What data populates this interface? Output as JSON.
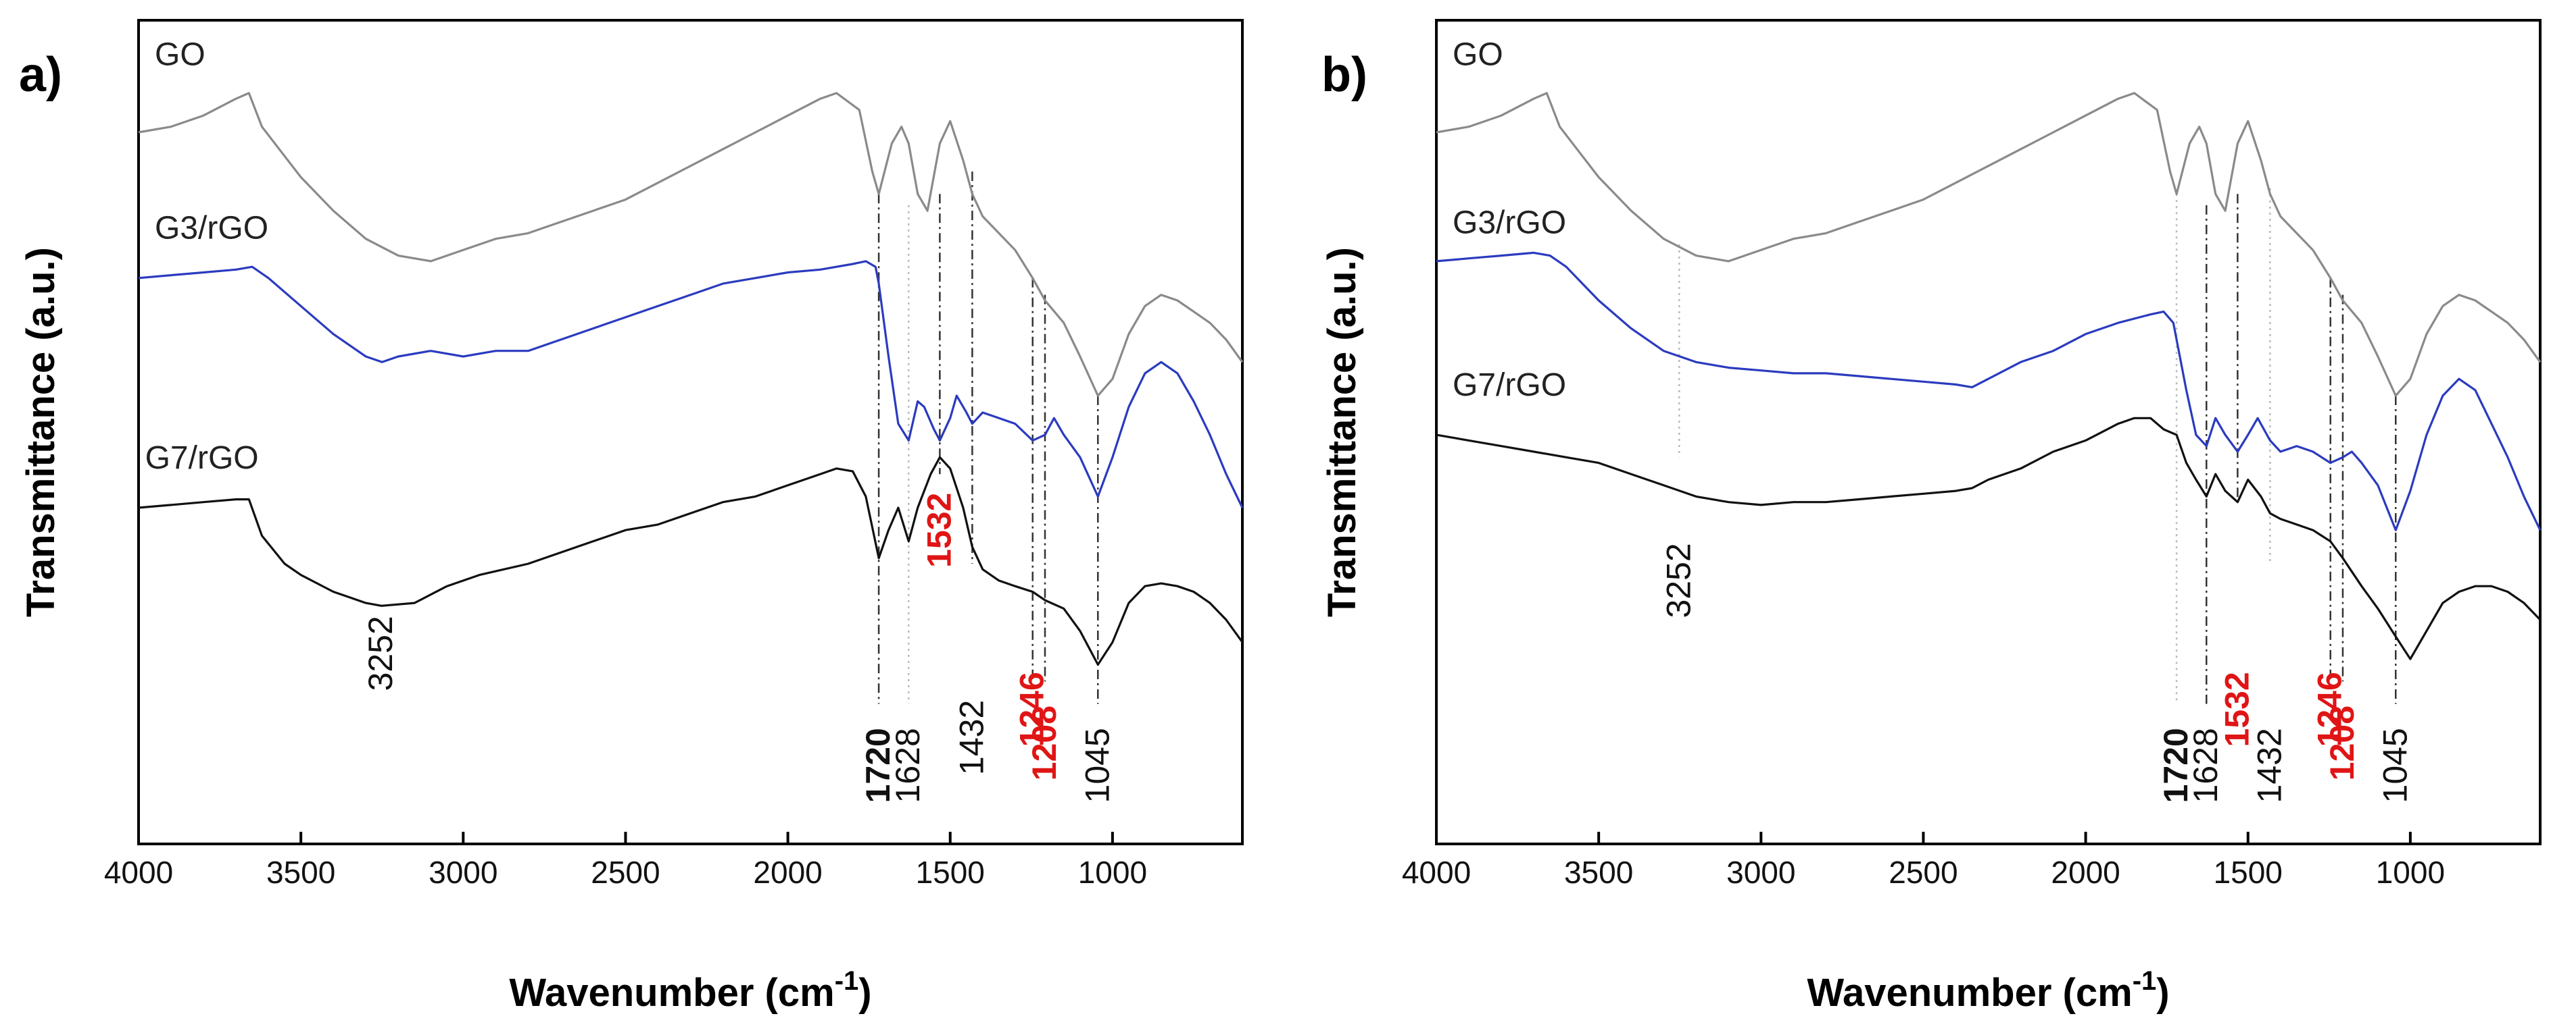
{
  "figure": {
    "ylabel": "Transmittance (a.u.)",
    "xlabel": "Wavenumber (cm",
    "xlabel_superscript": "-1",
    "xlabel_suffix": ")"
  },
  "colors": {
    "GO": "#8a8a8a",
    "G3/rGO": "#2b3bbf",
    "G7/rGO": "#111111",
    "guide": "#333333",
    "guide_light": "#bbbbbb",
    "highlight": "#e01515",
    "normal": "#111111"
  },
  "chart_data": [
    {
      "type": "line",
      "panel_label": "a)",
      "xlabel": "Wavenumber (cm-1)",
      "ylabel": "Transmittance (a.u.)",
      "xlim": [
        4000,
        600
      ],
      "x_ticks": [
        4000,
        3500,
        3000,
        2500,
        2000,
        1500,
        1000
      ],
      "y_ticks_shown": false,
      "series": [
        {
          "name": "GO",
          "x": [
            4000,
            3900,
            3800,
            3700,
            3660,
            3620,
            3500,
            3400,
            3300,
            3200,
            3100,
            3000,
            2900,
            2800,
            2700,
            2600,
            2500,
            2400,
            2300,
            2200,
            2100,
            2000,
            1900,
            1850,
            1780,
            1740,
            1720,
            1680,
            1650,
            1628,
            1600,
            1570,
            1532,
            1500,
            1460,
            1432,
            1400,
            1300,
            1246,
            1208,
            1150,
            1100,
            1045,
            1000,
            950,
            900,
            850,
            800,
            750,
            700,
            650,
            600
          ],
          "values": [
            9.0,
            9.1,
            9.3,
            9.6,
            9.7,
            9.1,
            8.2,
            7.6,
            7.1,
            6.8,
            6.7,
            6.9,
            7.1,
            7.2,
            7.4,
            7.6,
            7.8,
            8.1,
            8.4,
            8.7,
            9.0,
            9.3,
            9.6,
            9.7,
            9.4,
            8.3,
            7.9,
            8.8,
            9.1,
            8.8,
            7.9,
            7.6,
            8.8,
            9.2,
            8.5,
            7.9,
            7.5,
            6.9,
            6.4,
            6.0,
            5.6,
            5.0,
            4.3,
            4.6,
            5.4,
            5.9,
            6.1,
            6.0,
            5.8,
            5.6,
            5.3,
            4.9
          ]
        },
        {
          "name": "G3/rGO",
          "x": [
            4000,
            3900,
            3800,
            3700,
            3650,
            3600,
            3500,
            3400,
            3300,
            3250,
            3200,
            3100,
            3000,
            2900,
            2800,
            2700,
            2600,
            2500,
            2400,
            2300,
            2200,
            2100,
            2000,
            1900,
            1800,
            1760,
            1730,
            1720,
            1690,
            1660,
            1628,
            1600,
            1580,
            1550,
            1532,
            1500,
            1480,
            1450,
            1432,
            1400,
            1350,
            1300,
            1246,
            1208,
            1180,
            1150,
            1100,
            1045,
            1000,
            950,
            900,
            850,
            800,
            750,
            700,
            650,
            600
          ],
          "values": [
            6.4,
            6.45,
            6.5,
            6.55,
            6.6,
            6.4,
            5.9,
            5.4,
            5.0,
            4.9,
            5.0,
            5.1,
            5.0,
            5.1,
            5.1,
            5.3,
            5.5,
            5.7,
            5.9,
            6.1,
            6.3,
            6.4,
            6.5,
            6.55,
            6.65,
            6.7,
            6.6,
            6.3,
            5.0,
            3.8,
            3.5,
            4.2,
            4.1,
            3.7,
            3.5,
            3.9,
            4.3,
            4.0,
            3.8,
            4.0,
            3.9,
            3.8,
            3.5,
            3.6,
            3.9,
            3.6,
            3.2,
            2.5,
            3.2,
            4.1,
            4.7,
            4.9,
            4.7,
            4.2,
            3.6,
            2.9,
            2.3
          ]
        },
        {
          "name": "G7/rGO",
          "x": [
            4000,
            3900,
            3800,
            3700,
            3660,
            3620,
            3550,
            3500,
            3400,
            3300,
            3252,
            3150,
            3050,
            2950,
            2800,
            2700,
            2600,
            2500,
            2400,
            2300,
            2200,
            2100,
            2000,
            1900,
            1850,
            1800,
            1760,
            1720,
            1690,
            1660,
            1628,
            1600,
            1560,
            1532,
            1500,
            1460,
            1432,
            1400,
            1350,
            1300,
            1246,
            1208,
            1150,
            1100,
            1045,
            1000,
            950,
            900,
            850,
            800,
            750,
            700,
            650,
            600
          ],
          "values": [
            2.3,
            2.35,
            2.4,
            2.45,
            2.45,
            1.8,
            1.3,
            1.1,
            0.8,
            0.6,
            0.55,
            0.6,
            0.9,
            1.1,
            1.3,
            1.5,
            1.7,
            1.9,
            2.0,
            2.2,
            2.4,
            2.5,
            2.7,
            2.9,
            3.0,
            2.95,
            2.5,
            1.4,
            1.9,
            2.3,
            1.7,
            2.3,
            2.9,
            3.2,
            3.0,
            2.3,
            1.6,
            1.2,
            1.0,
            0.9,
            0.8,
            0.65,
            0.5,
            0.1,
            -0.5,
            -0.1,
            0.6,
            0.9,
            0.95,
            0.9,
            0.8,
            0.6,
            0.3,
            -0.1
          ]
        }
      ],
      "series_labels": [
        {
          "text": "GO",
          "x": 3950,
          "y": 10.2
        },
        {
          "text": "G3/rGO",
          "x": 3950,
          "y": 7.1
        },
        {
          "text": "G7/rGO",
          "x": 3980,
          "y": 3.0
        }
      ],
      "guides": [
        {
          "x": 1720,
          "y_from": 7.9,
          "y_to": -1.2,
          "style": "dash-dot",
          "color": "guide"
        },
        {
          "x": 1628,
          "y_from": 7.7,
          "y_to": -1.2,
          "style": "dotted",
          "color": "guide_light"
        },
        {
          "x": 1532,
          "y_from": 7.9,
          "y_to": 2.9,
          "style": "dash-dot",
          "color": "guide"
        },
        {
          "x": 1432,
          "y_from": 8.3,
          "y_to": 1.3,
          "style": "dash-dot",
          "color": "guide"
        },
        {
          "x": 1246,
          "y_from": 6.4,
          "y_to": -0.8,
          "style": "dash-dot",
          "color": "guide"
        },
        {
          "x": 1208,
          "y_from": 6.1,
          "y_to": -0.8,
          "style": "dash-dot",
          "color": "guide"
        },
        {
          "x": 1045,
          "y_from": 4.3,
          "y_to": -1.2,
          "style": "dash-dot",
          "color": "guide"
        }
      ],
      "annotations": [
        {
          "text": "3252",
          "x": 3252,
          "y": -0.3,
          "color": "normal",
          "bold": false
        },
        {
          "text": "1720",
          "x": 1720,
          "y": -2.3,
          "color": "normal",
          "bold": true
        },
        {
          "text": "1628",
          "x": 1628,
          "y": -2.3,
          "color": "normal",
          "bold": false
        },
        {
          "text": "1532",
          "x": 1532,
          "y": 1.9,
          "color": "highlight",
          "bold": true
        },
        {
          "text": "1432",
          "x": 1432,
          "y": -1.8,
          "color": "normal",
          "bold": false
        },
        {
          "text": "1246",
          "x": 1246,
          "y": -1.3,
          "color": "highlight",
          "bold": true
        },
        {
          "text": "1208",
          "x": 1208,
          "y": -1.9,
          "color": "highlight",
          "bold": true
        },
        {
          "text": "1045",
          "x": 1045,
          "y": -2.3,
          "color": "normal",
          "bold": false
        }
      ]
    },
    {
      "type": "line",
      "panel_label": "b)",
      "xlabel": "Wavenumber (cm-1)",
      "ylabel": "Transmittance (a.u.)",
      "xlim": [
        4000,
        600
      ],
      "x_ticks": [
        4000,
        3500,
        3000,
        2500,
        2000,
        1500,
        1000
      ],
      "y_ticks_shown": false,
      "series": [
        {
          "name": "GO",
          "x": [
            4000,
            3900,
            3800,
            3700,
            3660,
            3620,
            3500,
            3400,
            3300,
            3200,
            3100,
            3000,
            2900,
            2800,
            2700,
            2600,
            2500,
            2400,
            2300,
            2200,
            2100,
            2000,
            1900,
            1850,
            1780,
            1740,
            1720,
            1680,
            1650,
            1628,
            1600,
            1570,
            1532,
            1500,
            1460,
            1432,
            1400,
            1300,
            1246,
            1208,
            1150,
            1100,
            1045,
            1000,
            950,
            900,
            850,
            800,
            750,
            700,
            650,
            600
          ],
          "values": [
            9.0,
            9.1,
            9.3,
            9.6,
            9.7,
            9.1,
            8.2,
            7.6,
            7.1,
            6.8,
            6.7,
            6.9,
            7.1,
            7.2,
            7.4,
            7.6,
            7.8,
            8.1,
            8.4,
            8.7,
            9.0,
            9.3,
            9.6,
            9.7,
            9.4,
            8.3,
            7.9,
            8.8,
            9.1,
            8.8,
            7.9,
            7.6,
            8.8,
            9.2,
            8.5,
            7.9,
            7.5,
            6.9,
            6.4,
            6.0,
            5.6,
            5.0,
            4.3,
            4.6,
            5.4,
            5.9,
            6.1,
            6.0,
            5.8,
            5.6,
            5.3,
            4.9
          ]
        },
        {
          "name": "G3/rGO",
          "x": [
            4000,
            3900,
            3800,
            3700,
            3650,
            3600,
            3550,
            3500,
            3400,
            3300,
            3200,
            3100,
            3000,
            2900,
            2800,
            2700,
            2600,
            2500,
            2400,
            2350,
            2300,
            2200,
            2100,
            2000,
            1900,
            1800,
            1760,
            1730,
            1720,
            1690,
            1660,
            1628,
            1600,
            1570,
            1532,
            1500,
            1470,
            1432,
            1400,
            1350,
            1300,
            1246,
            1208,
            1180,
            1150,
            1100,
            1045,
            1000,
            950,
            900,
            850,
            800,
            750,
            700,
            650,
            600
          ],
          "values": [
            6.7,
            6.75,
            6.8,
            6.85,
            6.8,
            6.6,
            6.3,
            6.0,
            5.5,
            5.1,
            4.9,
            4.8,
            4.75,
            4.7,
            4.7,
            4.65,
            4.6,
            4.55,
            4.5,
            4.45,
            4.6,
            4.9,
            5.1,
            5.4,
            5.6,
            5.75,
            5.8,
            5.6,
            5.3,
            4.4,
            3.6,
            3.4,
            3.9,
            3.6,
            3.3,
            3.6,
            3.9,
            3.5,
            3.3,
            3.4,
            3.3,
            3.1,
            3.2,
            3.3,
            3.1,
            2.7,
            1.9,
            2.6,
            3.6,
            4.3,
            4.6,
            4.4,
            3.8,
            3.2,
            2.5,
            1.9
          ]
        },
        {
          "name": "G7/rGO",
          "x": [
            4000,
            3900,
            3800,
            3700,
            3600,
            3500,
            3400,
            3300,
            3200,
            3100,
            3000,
            2900,
            2800,
            2700,
            2600,
            2500,
            2400,
            2350,
            2300,
            2200,
            2100,
            2000,
            1900,
            1850,
            1800,
            1760,
            1720,
            1690,
            1660,
            1628,
            1600,
            1570,
            1532,
            1500,
            1460,
            1432,
            1400,
            1350,
            1300,
            1246,
            1208,
            1150,
            1100,
            1045,
            1000,
            950,
            900,
            850,
            800,
            750,
            700,
            650,
            600
          ],
          "values": [
            3.6,
            3.5,
            3.4,
            3.3,
            3.2,
            3.1,
            2.9,
            2.7,
            2.5,
            2.4,
            2.35,
            2.4,
            2.4,
            2.45,
            2.5,
            2.55,
            2.6,
            2.65,
            2.8,
            3.0,
            3.3,
            3.5,
            3.8,
            3.9,
            3.9,
            3.7,
            3.6,
            3.1,
            2.8,
            2.5,
            2.9,
            2.6,
            2.4,
            2.8,
            2.5,
            2.2,
            2.1,
            2.0,
            1.9,
            1.7,
            1.4,
            0.9,
            0.5,
            0.0,
            -0.4,
            0.1,
            0.6,
            0.8,
            0.9,
            0.9,
            0.8,
            0.6,
            0.3
          ]
        }
      ],
      "series_labels": [
        {
          "text": "GO",
          "x": 3950,
          "y": 10.2
        },
        {
          "text": "G3/rGO",
          "x": 3950,
          "y": 7.2
        },
        {
          "text": "G7/rGO",
          "x": 3950,
          "y": 4.3
        }
      ],
      "guides": [
        {
          "x": 3252,
          "y_from": 7.0,
          "y_to": 3.2,
          "style": "dotted",
          "color": "guide_light"
        },
        {
          "x": 1720,
          "y_from": 7.9,
          "y_to": -1.2,
          "style": "dotted",
          "color": "guide_light"
        },
        {
          "x": 1628,
          "y_from": 7.7,
          "y_to": -1.2,
          "style": "dash-dot",
          "color": "guide"
        },
        {
          "x": 1532,
          "y_from": 7.9,
          "y_to": 2.4,
          "style": "dash-dot",
          "color": "guide"
        },
        {
          "x": 1432,
          "y_from": 8.0,
          "y_to": 1.3,
          "style": "dotted",
          "color": "guide_light"
        },
        {
          "x": 1246,
          "y_from": 6.4,
          "y_to": -0.8,
          "style": "dash-dot",
          "color": "guide"
        },
        {
          "x": 1208,
          "y_from": 6.1,
          "y_to": -0.8,
          "style": "dash-dot",
          "color": "guide"
        },
        {
          "x": 1045,
          "y_from": 4.3,
          "y_to": -1.2,
          "style": "dash-dot",
          "color": "guide"
        }
      ],
      "annotations": [
        {
          "text": "3252",
          "x": 3252,
          "y": 1.0,
          "color": "normal",
          "bold": false
        },
        {
          "text": "1720",
          "x": 1720,
          "y": -2.3,
          "color": "normal",
          "bold": true
        },
        {
          "text": "1628",
          "x": 1628,
          "y": -2.3,
          "color": "normal",
          "bold": false
        },
        {
          "text": "1532",
          "x": 1532,
          "y": -1.3,
          "color": "highlight",
          "bold": true
        },
        {
          "text": "1432",
          "x": 1432,
          "y": -2.3,
          "color": "normal",
          "bold": false
        },
        {
          "text": "1246",
          "x": 1246,
          "y": -1.3,
          "color": "highlight",
          "bold": true
        },
        {
          "text": "1208",
          "x": 1208,
          "y": -1.9,
          "color": "highlight",
          "bold": true
        },
        {
          "text": "1045",
          "x": 1045,
          "y": -2.3,
          "color": "normal",
          "bold": false
        }
      ]
    }
  ]
}
